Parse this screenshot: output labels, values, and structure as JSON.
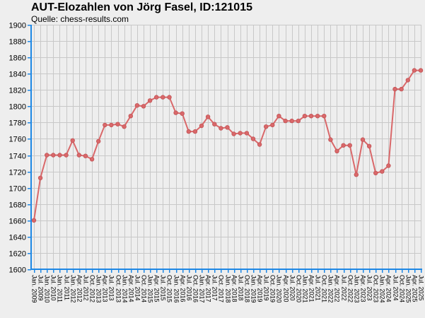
{
  "chart_data": {
    "type": "line",
    "title": "AUT-Elozahlen von Jörg Fasel, ID:121015",
    "subtitle": "Quelle: chess-results.com",
    "xlabel": "",
    "ylabel": "",
    "ylim": [
      1600,
      1900
    ],
    "y_ticks": [
      1600,
      1620,
      1640,
      1660,
      1680,
      1700,
      1720,
      1740,
      1760,
      1780,
      1800,
      1820,
      1840,
      1860,
      1880,
      1900
    ],
    "grid": true,
    "line_color": "#d9686a",
    "axis_color": "#1e88e5",
    "background": "#eeeeee",
    "x_tick_labels": [
      "Jan. 2009",
      "Jul. 2009",
      "Jan. 2010",
      "Jul. 2010",
      "Jan. 2011",
      "Jul. 2011",
      "Jan. 2012",
      "Apr. 2012",
      "Jul. 2012",
      "Oct. 2012",
      "Jan. 2013",
      "Apr. 2013",
      "Jul. 2013",
      "Oct. 2013",
      "Jan. 2014",
      "Apr. 2014",
      "Jul. 2014",
      "Oct. 2014",
      "Jan. 2015",
      "Apr. 2015",
      "Jul. 2015",
      "Oct. 2015",
      "Jan. 2016",
      "Apr. 2016",
      "Jul. 2016",
      "Oct. 2016",
      "Jan. 2017",
      "Apr. 2017",
      "Jul. 2017",
      "Oct. 2017",
      "Jan. 2018",
      "Apr. 2018",
      "Jul. 2018",
      "Oct. 2018",
      "Jan. 2019",
      "Apr. 2019",
      "Jul. 2019",
      "Oct. 2019",
      "Jan. 2020",
      "Apr. 2020",
      "Jul. 2020",
      "Oct. 2020",
      "Jan. 2021",
      "Apr. 2021",
      "Jul. 2021",
      "Oct. 2021",
      "Jan. 2022",
      "Apr. 2022",
      "Jul. 2022",
      "Oct. 2022",
      "Jan. 2023",
      "Apr. 2023",
      "Jul. 2023",
      "Oct. 2023",
      "Jan. 2024",
      "Apr. 2024",
      "Jul. 2024",
      "Oct. 2024",
      "Jan. 2025",
      "Apr. 2025",
      "Jul. 2025"
    ],
    "series": [
      {
        "values": [
          1660,
          1712,
          1740,
          1740,
          1740,
          1740,
          1758,
          1740,
          1739,
          1735,
          1757,
          1777,
          1777,
          1778,
          1775,
          1788,
          1801,
          1800,
          1807,
          1811,
          1811,
          1811,
          1792,
          1791,
          1769,
          1769,
          1776,
          1787,
          1778,
          1773,
          1774,
          1766,
          1767,
          1767,
          1760,
          1753,
          1775,
          1777,
          1788,
          1782,
          1782,
          1782,
          1788,
          1788,
          1788,
          1788,
          1759,
          1745,
          1752,
          1752,
          1716,
          1759,
          1751,
          1718,
          1720,
          1727,
          1821,
          1821,
          1832,
          1844,
          1844
        ]
      }
    ]
  }
}
